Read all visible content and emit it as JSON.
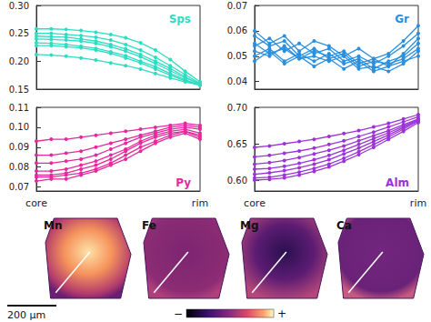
{
  "chart_data": [
    {
      "type": "line",
      "title": "Sps",
      "color": "#2fdcc2",
      "marker": "circle",
      "tick_labels": "y",
      "categories": [
        "core",
        null,
        null,
        null,
        null,
        null,
        null,
        null,
        null,
        null,
        null,
        "rim"
      ],
      "ylim": [
        0.15,
        0.3
      ],
      "yticks": [
        {
          "value": 0.15,
          "label": "0.15"
        },
        {
          "value": 0.2,
          "label": "0.20"
        },
        {
          "value": 0.25,
          "label": "0.25"
        },
        {
          "value": 0.3,
          "label": "0.30"
        }
      ],
      "series": [
        {
          "values": [
            0.258,
            0.258,
            0.257,
            0.255,
            0.252,
            0.248,
            0.242,
            0.233,
            0.22,
            0.203,
            0.182,
            0.163
          ]
        },
        {
          "values": [
            0.25,
            0.25,
            0.248,
            0.246,
            0.243,
            0.238,
            0.23,
            0.22,
            0.207,
            0.192,
            0.176,
            0.16
          ]
        },
        {
          "values": [
            0.245,
            0.244,
            0.243,
            0.24,
            0.236,
            0.23,
            0.222,
            0.212,
            0.2,
            0.187,
            0.172,
            0.158
          ]
        },
        {
          "values": [
            0.24,
            0.239,
            0.238,
            0.236,
            0.232,
            0.226,
            0.218,
            0.208,
            0.196,
            0.183,
            0.17,
            0.16
          ]
        },
        {
          "values": [
            0.233,
            0.232,
            0.23,
            0.227,
            0.223,
            0.217,
            0.21,
            0.2,
            0.19,
            0.178,
            0.167,
            0.157
          ]
        },
        {
          "values": [
            0.228,
            0.228,
            0.226,
            0.224,
            0.22,
            0.214,
            0.206,
            0.197,
            0.186,
            0.175,
            0.165,
            0.158
          ]
        },
        {
          "values": [
            0.212,
            0.211,
            0.209,
            0.206,
            0.202,
            0.197,
            0.192,
            0.186,
            0.178,
            0.17,
            0.163,
            0.157
          ]
        }
      ]
    },
    {
      "type": "line",
      "title": "Gr",
      "color": "#2a8fdf",
      "marker": "circle",
      "tick_labels": "y",
      "categories": [
        "core",
        null,
        null,
        null,
        null,
        null,
        null,
        null,
        null,
        null,
        null,
        "rim"
      ],
      "ylim": [
        0.037,
        0.07
      ],
      "yticks": [
        {
          "value": 0.04,
          "label": "0.04"
        },
        {
          "value": 0.05,
          "label": "0.05"
        },
        {
          "value": 0.06,
          "label": "0.06"
        },
        {
          "value": 0.07,
          "label": "0.07"
        }
      ],
      "series": [
        {
          "values": [
            0.06,
            0.055,
            0.058,
            0.052,
            0.056,
            0.054,
            0.05,
            0.053,
            0.049,
            0.051,
            0.056,
            0.062
          ]
        },
        {
          "values": [
            0.054,
            0.057,
            0.052,
            0.055,
            0.051,
            0.053,
            0.048,
            0.05,
            0.047,
            0.05,
            0.054,
            0.059
          ]
        },
        {
          "values": [
            0.052,
            0.05,
            0.054,
            0.049,
            0.052,
            0.05,
            0.052,
            0.047,
            0.049,
            0.046,
            0.051,
            0.057
          ]
        },
        {
          "values": [
            0.05,
            0.053,
            0.048,
            0.051,
            0.048,
            0.051,
            0.047,
            0.049,
            0.045,
            0.048,
            0.05,
            0.055
          ]
        },
        {
          "values": [
            0.058,
            0.054,
            0.056,
            0.05,
            0.053,
            0.049,
            0.051,
            0.046,
            0.048,
            0.047,
            0.049,
            0.053
          ]
        },
        {
          "values": [
            0.055,
            0.051,
            0.053,
            0.049,
            0.05,
            0.048,
            0.05,
            0.045,
            0.046,
            0.044,
            0.047,
            0.052
          ]
        },
        {
          "values": [
            0.048,
            0.052,
            0.047,
            0.05,
            0.046,
            0.049,
            0.045,
            0.048,
            0.044,
            0.046,
            0.048,
            0.05
          ]
        }
      ]
    },
    {
      "type": "line",
      "title": "Py",
      "color": "#e42a9c",
      "marker": "circle",
      "categories": [
        "core",
        null,
        null,
        null,
        null,
        null,
        null,
        null,
        null,
        null,
        null,
        "rim"
      ],
      "ylim": [
        0.068,
        0.11
      ],
      "yticks": [
        {
          "value": 0.07,
          "label": "0.07"
        },
        {
          "value": 0.08,
          "label": "0.08"
        },
        {
          "value": 0.09,
          "label": "0.09"
        },
        {
          "value": 0.1,
          "label": "0.10"
        },
        {
          "value": 0.11,
          "label": "0.11"
        }
      ],
      "series": [
        {
          "values": [
            0.093,
            0.094,
            0.094,
            0.095,
            0.096,
            0.097,
            0.098,
            0.099,
            0.1,
            0.101,
            0.102,
            0.101
          ]
        },
        {
          "values": [
            0.086,
            0.086,
            0.087,
            0.088,
            0.09,
            0.092,
            0.094,
            0.096,
            0.098,
            0.1,
            0.101,
            0.1
          ]
        },
        {
          "values": [
            0.082,
            0.082,
            0.083,
            0.084,
            0.086,
            0.089,
            0.092,
            0.095,
            0.097,
            0.099,
            0.1,
            0.099
          ]
        },
        {
          "values": [
            0.078,
            0.078,
            0.079,
            0.081,
            0.083,
            0.086,
            0.089,
            0.093,
            0.096,
            0.098,
            0.099,
            0.097
          ]
        },
        {
          "values": [
            0.076,
            0.076,
            0.077,
            0.079,
            0.081,
            0.084,
            0.088,
            0.092,
            0.095,
            0.097,
            0.098,
            0.095
          ]
        },
        {
          "values": [
            0.075,
            0.075,
            0.076,
            0.077,
            0.079,
            0.082,
            0.086,
            0.09,
            0.093,
            0.096,
            0.098,
            0.096
          ]
        },
        {
          "values": [
            0.073,
            0.074,
            0.074,
            0.076,
            0.078,
            0.081,
            0.084,
            0.088,
            0.092,
            0.095,
            0.097,
            0.094
          ]
        }
      ]
    },
    {
      "type": "line",
      "title": "Alm",
      "color": "#9b34d6",
      "marker": "circle",
      "categories": [
        "core",
        null,
        null,
        null,
        null,
        null,
        null,
        null,
        null,
        null,
        null,
        "rim"
      ],
      "ylim": [
        0.585,
        0.7
      ],
      "yticks": [
        {
          "value": 0.6,
          "label": "0.60"
        },
        {
          "value": 0.65,
          "label": "0.65"
        },
        {
          "value": 0.7,
          "label": "0.70"
        }
      ],
      "series": [
        {
          "values": [
            0.645,
            0.647,
            0.65,
            0.653,
            0.656,
            0.66,
            0.664,
            0.668,
            0.673,
            0.678,
            0.684,
            0.69
          ]
        },
        {
          "values": [
            0.632,
            0.634,
            0.637,
            0.64,
            0.644,
            0.649,
            0.654,
            0.66,
            0.666,
            0.673,
            0.68,
            0.687
          ]
        },
        {
          "values": [
            0.622,
            0.624,
            0.627,
            0.631,
            0.636,
            0.641,
            0.647,
            0.654,
            0.661,
            0.668,
            0.676,
            0.684
          ]
        },
        {
          "values": [
            0.615,
            0.616,
            0.619,
            0.623,
            0.628,
            0.634,
            0.641,
            0.649,
            0.657,
            0.665,
            0.674,
            0.683
          ]
        },
        {
          "values": [
            0.608,
            0.61,
            0.613,
            0.617,
            0.622,
            0.628,
            0.636,
            0.644,
            0.653,
            0.662,
            0.672,
            0.682
          ]
        },
        {
          "values": [
            0.603,
            0.604,
            0.607,
            0.611,
            0.616,
            0.622,
            0.63,
            0.639,
            0.649,
            0.659,
            0.67,
            0.681
          ]
        },
        {
          "values": [
            0.6,
            0.601,
            0.603,
            0.607,
            0.612,
            0.618,
            0.626,
            0.635,
            0.645,
            0.656,
            0.667,
            0.679
          ]
        }
      ]
    }
  ],
  "maps": {
    "labels": [
      "Mn",
      "Fe",
      "Mg",
      "Ca"
    ],
    "scale_bar": "200 µm",
    "color_bar": {
      "low_label": "−",
      "high_label": "+"
    }
  }
}
